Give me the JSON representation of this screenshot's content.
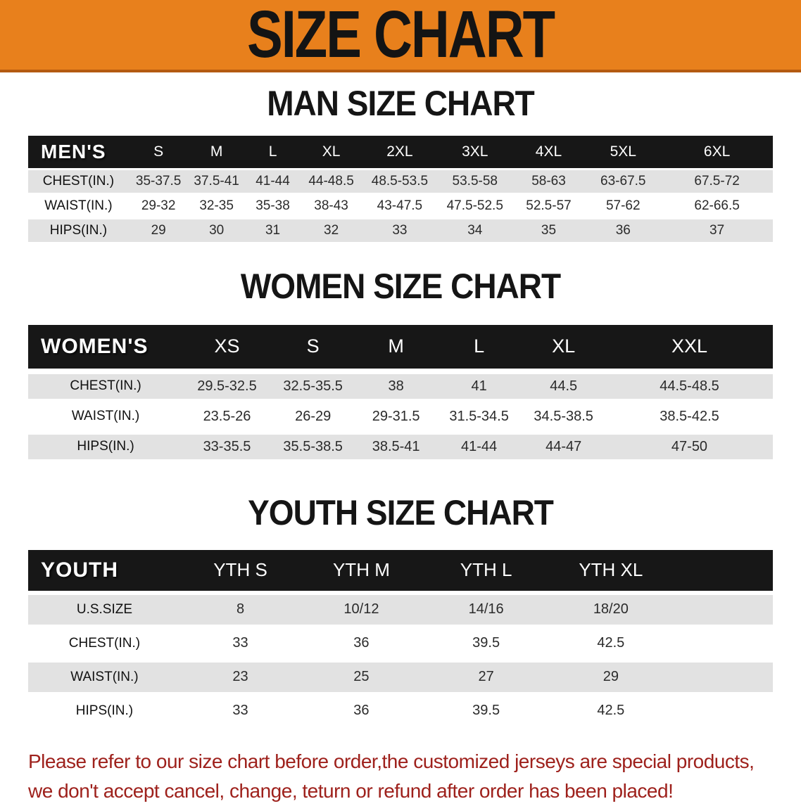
{
  "banner": {
    "title": "SIZE CHART",
    "bg_color": "#e8801c",
    "title_color": "#141414"
  },
  "chart_data": [
    {
      "type": "table",
      "title": "MAN SIZE CHART",
      "group_label": "MEN'S",
      "columns": [
        "S",
        "M",
        "L",
        "XL",
        "2XL",
        "3XL",
        "4XL",
        "5XL",
        "6XL"
      ],
      "rows": [
        {
          "label": "CHEST(IN.)",
          "values": [
            "35-37.5",
            "37.5-41",
            "41-44",
            "44-48.5",
            "48.5-53.5",
            "53.5-58",
            "58-63",
            "63-67.5",
            "67.5-72"
          ]
        },
        {
          "label": "WAIST(IN.)",
          "values": [
            "29-32",
            "32-35",
            "35-38",
            "38-43",
            "43-47.5",
            "47.5-52.5",
            "52.5-57",
            "57-62",
            "62-66.5"
          ]
        },
        {
          "label": "HIPS(IN.)",
          "values": [
            "29",
            "30",
            "31",
            "32",
            "33",
            "34",
            "35",
            "36",
            "37"
          ]
        }
      ]
    },
    {
      "type": "table",
      "title": "WOMEN SIZE CHART",
      "group_label": "WOMEN'S",
      "columns": [
        "XS",
        "S",
        "M",
        "L",
        "XL",
        "XXL"
      ],
      "rows": [
        {
          "label": "CHEST(IN.)",
          "values": [
            "29.5-32.5",
            "32.5-35.5",
            "38",
            "41",
            "44.5",
            "44.5-48.5"
          ]
        },
        {
          "label": "WAIST(IN.)",
          "values": [
            "23.5-26",
            "26-29",
            "29-31.5",
            "31.5-34.5",
            "34.5-38.5",
            "38.5-42.5"
          ]
        },
        {
          "label": "HIPS(IN.)",
          "values": [
            "33-35.5",
            "35.5-38.5",
            "38.5-41",
            "41-44",
            "44-47",
            "47-50"
          ]
        }
      ]
    },
    {
      "type": "table",
      "title": "YOUTH SIZE CHART",
      "group_label": "YOUTH",
      "columns": [
        "YTH S",
        "YTH M",
        "YTH L",
        "YTH XL"
      ],
      "rows": [
        {
          "label": "U.S.SIZE",
          "values": [
            "8",
            "10/12",
            "14/16",
            "18/20"
          ]
        },
        {
          "label": "CHEST(IN.)",
          "values": [
            "33",
            "36",
            "39.5",
            "42.5"
          ]
        },
        {
          "label": "WAIST(IN.)",
          "values": [
            "23",
            "25",
            "27",
            "29"
          ]
        },
        {
          "label": "HIPS(IN.)",
          "values": [
            "33",
            "36",
            "39.5",
            "42.5"
          ]
        }
      ]
    }
  ],
  "disclaimer": {
    "line1": "Please refer to our size chart before order,the customized jerseys are special products,",
    "line2": "we don't accept cancel, change, teturn or refund after order has been placed!",
    "color": "#9e211c"
  }
}
